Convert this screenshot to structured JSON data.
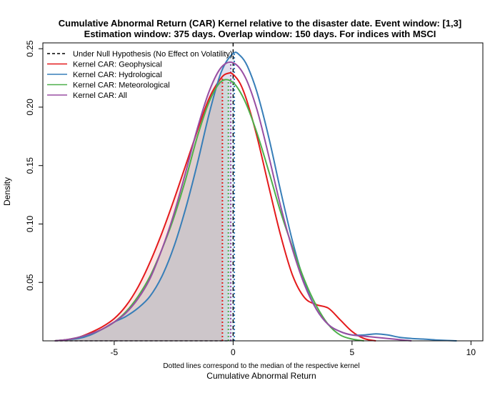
{
  "chart_data": {
    "type": "line",
    "title_line1": "Cumulative Abnormal Return (CAR) Kernel relative to the disaster date. Event window: [1,3]",
    "title_line2": "Estimation window: 375 days. Overlap window: 150 days. For indices with MSCI",
    "xlabel": "Cumulative Abnormal Return",
    "ylabel": "Density",
    "note": "Dotted lines correspond to the median of the respective kernel",
    "xlim": [
      -8,
      10.5
    ],
    "ylim": [
      0,
      0.255
    ],
    "xticks": [
      -5,
      0,
      5,
      10
    ],
    "xtick_labels": [
      "-5",
      "0",
      "5",
      "10"
    ],
    "yticks": [
      0.05,
      0.1,
      0.15,
      0.2,
      0.25
    ],
    "ytick_labels": [
      "0.05",
      "0.10",
      "0.15",
      "0.20",
      "0.25"
    ],
    "legend_position": "top-left",
    "null_line": {
      "name": "Under Null Hypothesis (No Effect on Volatility)",
      "x": 0,
      "color": "#000000"
    },
    "series": [
      {
        "name": "Kernel CAR: Geophysical",
        "color": "#E41A1C",
        "median": -0.45,
        "x": [
          -7.5,
          -7,
          -6.5,
          -6,
          -5.5,
          -5,
          -4.5,
          -4,
          -3.5,
          -3,
          -2.5,
          -2,
          -1.5,
          -1,
          -0.5,
          -0.2,
          0,
          0.3,
          0.6,
          1,
          1.5,
          2,
          2.5,
          3,
          3.5,
          4,
          4.5,
          5,
          5.5,
          6
        ],
        "y": [
          0.0,
          0.001,
          0.003,
          0.007,
          0.012,
          0.019,
          0.03,
          0.046,
          0.067,
          0.092,
          0.12,
          0.15,
          0.18,
          0.208,
          0.225,
          0.229,
          0.228,
          0.22,
          0.204,
          0.175,
          0.132,
          0.09,
          0.056,
          0.037,
          0.031,
          0.028,
          0.018,
          0.008,
          0.002,
          0.0
        ]
      },
      {
        "name": "Kernel CAR: Hydrological",
        "color": "#377EB8",
        "median": 0.05,
        "x": [
          -7.5,
          -6.5,
          -6,
          -5.5,
          -5,
          -4.5,
          -4,
          -3.5,
          -3,
          -2.5,
          -2,
          -1.5,
          -1,
          -0.5,
          0,
          0.3,
          0.6,
          1,
          1.5,
          2,
          2.5,
          3,
          3.5,
          4,
          4.5,
          5,
          5.5,
          6,
          6.5,
          7,
          7.5,
          8,
          8.5,
          9,
          9.4
        ],
        "y": [
          0.0,
          0.002,
          0.005,
          0.01,
          0.016,
          0.021,
          0.028,
          0.038,
          0.055,
          0.08,
          0.113,
          0.152,
          0.195,
          0.23,
          0.246,
          0.244,
          0.235,
          0.213,
          0.174,
          0.128,
          0.085,
          0.05,
          0.027,
          0.014,
          0.008,
          0.005,
          0.005,
          0.006,
          0.005,
          0.003,
          0.002,
          0.0015,
          0.0008,
          0.0003,
          0.0
        ]
      },
      {
        "name": "Kernel CAR: Meteorological",
        "color": "#4DAF4A",
        "median": -0.2,
        "x": [
          -7.5,
          -7,
          -6.5,
          -6,
          -5.5,
          -5,
          -4.5,
          -4,
          -3.5,
          -3,
          -2.5,
          -2,
          -1.5,
          -1,
          -0.5,
          0,
          0.5,
          1,
          1.5,
          2,
          2.5,
          3,
          3.5,
          4,
          4.5,
          5,
          5.5
        ],
        "y": [
          0.0,
          0.001,
          0.003,
          0.006,
          0.01,
          0.016,
          0.025,
          0.038,
          0.055,
          0.078,
          0.105,
          0.138,
          0.175,
          0.205,
          0.222,
          0.221,
          0.205,
          0.178,
          0.145,
          0.11,
          0.08,
          0.052,
          0.03,
          0.014,
          0.005,
          0.0015,
          0.0
        ]
      },
      {
        "name": "Kernel CAR: All",
        "color": "#984EA3",
        "median": -0.1,
        "x": [
          -7.5,
          -7,
          -6.5,
          -6,
          -5.5,
          -5,
          -4.5,
          -4,
          -3.5,
          -3,
          -2.5,
          -2,
          -1.5,
          -1,
          -0.5,
          0,
          0.5,
          1,
          1.5,
          2,
          2.5,
          3,
          3.5,
          4,
          4.5,
          5,
          5.5,
          6,
          6.5,
          7,
          7.5
        ],
        "y": [
          0.0,
          0.001,
          0.003,
          0.006,
          0.01,
          0.016,
          0.024,
          0.036,
          0.053,
          0.078,
          0.108,
          0.144,
          0.182,
          0.214,
          0.234,
          0.238,
          0.226,
          0.198,
          0.158,
          0.115,
          0.078,
          0.048,
          0.027,
          0.014,
          0.008,
          0.005,
          0.004,
          0.003,
          0.002,
          0.001,
          0.0
        ]
      }
    ]
  }
}
